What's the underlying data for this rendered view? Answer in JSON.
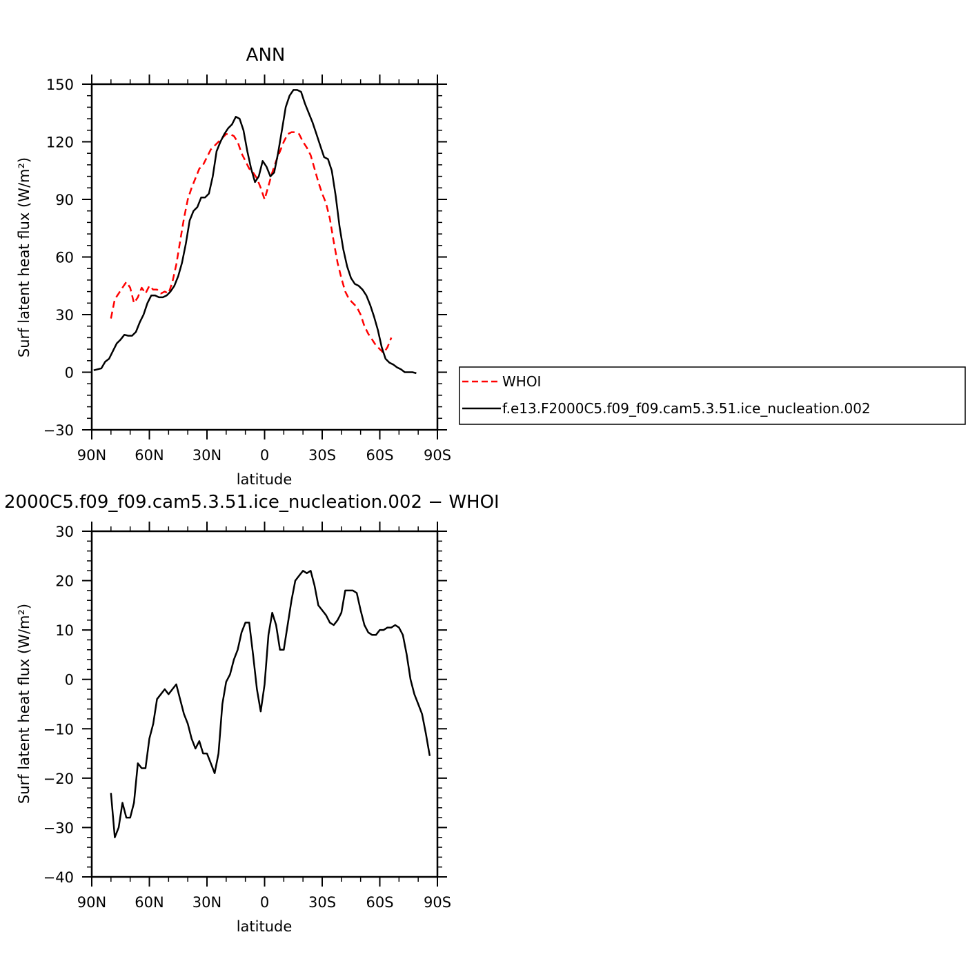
{
  "chart_data": [
    {
      "type": "line",
      "title": "ANN",
      "xlabel": "latitude",
      "ylabel": "Surf latent heat flux (W/m²)",
      "xlim": [
        90,
        -90
      ],
      "ylim": [
        -30,
        150
      ],
      "xticks": [
        90,
        60,
        30,
        0,
        -30,
        -60,
        -90
      ],
      "xtick_labels": [
        "90N",
        "60N",
        "30N",
        "0",
        "30S",
        "60S",
        "90S"
      ],
      "yticks": [
        -30,
        0,
        30,
        60,
        90,
        120,
        150
      ],
      "ytick_labels": [
        "−30",
        "0",
        "30",
        "60",
        "90",
        "120",
        "150"
      ],
      "grid": false,
      "legend_position": "right",
      "series": [
        {
          "name": "WHOI",
          "color": "#ff0000",
          "style": "dashed",
          "points": [
            [
              80,
              28
            ],
            [
              78,
              38
            ],
            [
              76,
              41
            ],
            [
              74,
              44
            ],
            [
              72,
              47
            ],
            [
              70,
              44
            ],
            [
              68,
              36
            ],
            [
              66,
              39
            ],
            [
              64,
              44
            ],
            [
              62,
              41
            ],
            [
              60,
              45
            ],
            [
              58,
              43
            ],
            [
              56,
              43
            ],
            [
              54,
              41
            ],
            [
              52,
              42
            ],
            [
              50,
              41
            ],
            [
              48,
              47
            ],
            [
              46,
              56
            ],
            [
              44,
              68
            ],
            [
              42,
              80
            ],
            [
              40,
              90
            ],
            [
              38,
              96
            ],
            [
              36,
              101
            ],
            [
              34,
              106
            ],
            [
              32,
              108
            ],
            [
              30,
              112
            ],
            [
              28,
              116
            ],
            [
              26,
              118
            ],
            [
              24,
              120
            ],
            [
              22,
              122
            ],
            [
              20,
              124
            ],
            [
              18,
              124
            ],
            [
              16,
              123
            ],
            [
              14,
              120
            ],
            [
              12,
              114
            ],
            [
              10,
              110
            ],
            [
              8,
              106
            ],
            [
              6,
              104
            ],
            [
              4,
              101
            ],
            [
              2,
              96
            ],
            [
              0,
              90
            ],
            [
              -2,
              97
            ],
            [
              -4,
              104
            ],
            [
              -6,
              110
            ],
            [
              -8,
              115
            ],
            [
              -10,
              120
            ],
            [
              -12,
              124
            ],
            [
              -14,
              125
            ],
            [
              -16,
              125
            ],
            [
              -18,
              124
            ],
            [
              -20,
              120
            ],
            [
              -22,
              117
            ],
            [
              -24,
              113
            ],
            [
              -26,
              106
            ],
            [
              -28,
              99
            ],
            [
              -30,
              93
            ],
            [
              -32,
              88
            ],
            [
              -34,
              80
            ],
            [
              -36,
              68
            ],
            [
              -38,
              57
            ],
            [
              -40,
              49
            ],
            [
              -42,
              42
            ],
            [
              -44,
              38
            ],
            [
              -46,
              36
            ],
            [
              -48,
              34
            ],
            [
              -50,
              30
            ],
            [
              -52,
              24
            ],
            [
              -54,
              20
            ],
            [
              -56,
              17
            ],
            [
              -58,
              14
            ],
            [
              -60,
              12
            ],
            [
              -62,
              10
            ],
            [
              -64,
              13
            ],
            [
              -66,
              18
            ]
          ]
        },
        {
          "name": "f.e13.F2000C5.f09_f09.cam5.3.51.ice_nucleation.002",
          "color": "#000000",
          "style": "solid",
          "points": [
            [
              89,
              1
            ],
            [
              87,
              1.5
            ],
            [
              85,
              2
            ],
            [
              83,
              5.5
            ],
            [
              81,
              7
            ],
            [
              79,
              11
            ],
            [
              77,
              15
            ],
            [
              75,
              17
            ],
            [
              73,
              19.5
            ],
            [
              71,
              19
            ],
            [
              69,
              19
            ],
            [
              67,
              21
            ],
            [
              65,
              26
            ],
            [
              63,
              30
            ],
            [
              61,
              36
            ],
            [
              59,
              40
            ],
            [
              57,
              40
            ],
            [
              55,
              39
            ],
            [
              53,
              39
            ],
            [
              51,
              40
            ],
            [
              49,
              42
            ],
            [
              47,
              45
            ],
            [
              45,
              50
            ],
            [
              43,
              57
            ],
            [
              41,
              67
            ],
            [
              39,
              79
            ],
            [
              37,
              84
            ],
            [
              35,
              86
            ],
            [
              33,
              91
            ],
            [
              31,
              91
            ],
            [
              29,
              93
            ],
            [
              27,
              102
            ],
            [
              25,
              115
            ],
            [
              23,
              120
            ],
            [
              21,
              124
            ],
            [
              19,
              127
            ],
            [
              17,
              129
            ],
            [
              15,
              133
            ],
            [
              13,
              132
            ],
            [
              11,
              126
            ],
            [
              9,
              115
            ],
            [
              7,
              106
            ],
            [
              5,
              99
            ],
            [
              3,
              102
            ],
            [
              1,
              110
            ],
            [
              -1,
              107
            ],
            [
              -3,
              102
            ],
            [
              -5,
              104
            ],
            [
              -7,
              114
            ],
            [
              -9,
              126
            ],
            [
              -11,
              138
            ],
            [
              -13,
              144
            ],
            [
              -15,
              147
            ],
            [
              -17,
              147
            ],
            [
              -19,
              146
            ],
            [
              -21,
              140
            ],
            [
              -23,
              135
            ],
            [
              -25,
              130
            ],
            [
              -27,
              124
            ],
            [
              -29,
              118
            ],
            [
              -31,
              112
            ],
            [
              -33,
              111
            ],
            [
              -35,
              105
            ],
            [
              -37,
              92
            ],
            [
              -39,
              76
            ],
            [
              -41,
              64
            ],
            [
              -43,
              55
            ],
            [
              -45,
              49
            ],
            [
              -47,
              46
            ],
            [
              -49,
              45
            ],
            [
              -51,
              43
            ],
            [
              -53,
              40
            ],
            [
              -55,
              35
            ],
            [
              -57,
              29
            ],
            [
              -59,
              22
            ],
            [
              -61,
              13
            ],
            [
              -63,
              7
            ],
            [
              -65,
              5
            ],
            [
              -67,
              4
            ],
            [
              -69,
              2.5
            ],
            [
              -71,
              1.5
            ],
            [
              -73,
              0
            ],
            [
              -77,
              0
            ],
            [
              -79,
              -0.5
            ]
          ]
        }
      ]
    },
    {
      "type": "line",
      "title": "2000C5.f09_f09.cam5.3.51.ice_nucleation.002 − WHOI",
      "xlabel": "latitude",
      "ylabel": "Surf latent heat flux (W/m²)",
      "xlim": [
        90,
        -90
      ],
      "ylim": [
        -40,
        30
      ],
      "xticks": [
        90,
        60,
        30,
        0,
        -30,
        -60,
        -90
      ],
      "xtick_labels": [
        "90N",
        "60N",
        "30N",
        "0",
        "30S",
        "60S",
        "90S"
      ],
      "yticks": [
        -40,
        -30,
        -20,
        -10,
        0,
        10,
        20,
        30
      ],
      "ytick_labels": [
        "−40",
        "−30",
        "−20",
        "−10",
        "0",
        "10",
        "20",
        "30"
      ],
      "grid": false,
      "series": [
        {
          "color": "#000000",
          "style": "solid",
          "points": [
            [
              80,
              -23
            ],
            [
              78,
              -32
            ],
            [
              76,
              -30
            ],
            [
              74,
              -25
            ],
            [
              72,
              -28
            ],
            [
              70,
              -28
            ],
            [
              68,
              -25
            ],
            [
              66,
              -17
            ],
            [
              64,
              -18
            ],
            [
              62,
              -18
            ],
            [
              60,
              -12
            ],
            [
              58,
              -9
            ],
            [
              56,
              -4
            ],
            [
              54,
              -3
            ],
            [
              52,
              -2
            ],
            [
              50,
              -3
            ],
            [
              48,
              -2
            ],
            [
              46,
              -1
            ],
            [
              44,
              -4
            ],
            [
              42,
              -7
            ],
            [
              40,
              -9
            ],
            [
              38,
              -12
            ],
            [
              36,
              -14
            ],
            [
              34,
              -12.5
            ],
            [
              32,
              -15
            ],
            [
              30,
              -15
            ],
            [
              28,
              -17
            ],
            [
              26,
              -19
            ],
            [
              24,
              -15
            ],
            [
              22,
              -5
            ],
            [
              20,
              -0.5
            ],
            [
              18,
              1
            ],
            [
              16,
              4
            ],
            [
              14,
              6
            ],
            [
              12,
              9.5
            ],
            [
              10,
              11.5
            ],
            [
              8,
              11.5
            ],
            [
              6,
              5
            ],
            [
              4,
              -2
            ],
            [
              2,
              -6.5
            ],
            [
              0,
              -1
            ],
            [
              -2,
              9
            ],
            [
              -4,
              13.5
            ],
            [
              -6,
              11
            ],
            [
              -8,
              6
            ],
            [
              -10,
              6
            ],
            [
              -12,
              11
            ],
            [
              -14,
              16
            ],
            [
              -16,
              20
            ],
            [
              -18,
              21
            ],
            [
              -20,
              22
            ],
            [
              -22,
              21.5
            ],
            [
              -24,
              22
            ],
            [
              -26,
              19
            ],
            [
              -28,
              15
            ],
            [
              -30,
              14
            ],
            [
              -32,
              13
            ],
            [
              -34,
              11.5
            ],
            [
              -36,
              11
            ],
            [
              -38,
              12
            ],
            [
              -40,
              13.5
            ],
            [
              -42,
              18
            ],
            [
              -44,
              18
            ],
            [
              -46,
              18
            ],
            [
              -48,
              17.5
            ],
            [
              -50,
              14
            ],
            [
              -52,
              11
            ],
            [
              -54,
              9.5
            ],
            [
              -56,
              9
            ],
            [
              -58,
              9
            ],
            [
              -60,
              10
            ],
            [
              -62,
              10
            ],
            [
              -64,
              10.5
            ],
            [
              -66,
              10.5
            ],
            [
              -68,
              11
            ],
            [
              -70,
              10.5
            ],
            [
              -72,
              9
            ],
            [
              -74,
              5
            ],
            [
              -76,
              0
            ],
            [
              -78,
              -3
            ],
            [
              -80,
              -5
            ],
            [
              -82,
              -7
            ],
            [
              -84,
              -11
            ],
            [
              -86,
              -15.5
            ]
          ]
        }
      ]
    }
  ]
}
